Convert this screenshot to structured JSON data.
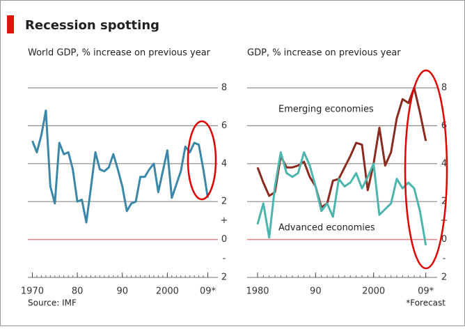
{
  "title": "Recession spotting",
  "source": "Source: IMF",
  "note": "*Forecast",
  "chart_data": [
    {
      "type": "line",
      "subtitle": "World GDP, % increase on previous year",
      "x": [
        1970,
        1971,
        1972,
        1973,
        1974,
        1975,
        1976,
        1977,
        1978,
        1979,
        1980,
        1981,
        1982,
        1983,
        1984,
        1985,
        1986,
        1987,
        1988,
        1989,
        1990,
        1991,
        1992,
        1993,
        1994,
        1995,
        1996,
        1997,
        1998,
        1999,
        2000,
        2001,
        2002,
        2003,
        2004,
        2005,
        2006,
        2007,
        2008,
        2009
      ],
      "values": [
        5.2,
        4.6,
        5.5,
        6.8,
        2.8,
        1.9,
        5.1,
        4.5,
        4.6,
        3.7,
        2.0,
        2.1,
        0.9,
        2.7,
        4.6,
        3.7,
        3.6,
        3.8,
        4.5,
        3.7,
        2.8,
        1.5,
        1.9,
        2.0,
        3.3,
        3.3,
        3.7,
        4.0,
        2.5,
        3.6,
        4.7,
        2.2,
        2.9,
        3.6,
        4.9,
        4.6,
        5.1,
        5.0,
        3.7,
        2.2
      ],
      "color": "#3a87a8",
      "xlim": [
        1969,
        2010
      ],
      "xticks": [
        1970,
        {
          "value": 1980,
          "label": "80"
        },
        {
          "value": 1990,
          "label": "90"
        },
        2000,
        {
          "value": 2009,
          "label": "09*"
        }
      ],
      "ylim": [
        -2,
        8
      ],
      "yticks": [
        8,
        6,
        4,
        2,
        0,
        {
          "value": -2,
          "label": "2"
        }
      ],
      "sign_labels": [
        {
          "value": 1,
          "label": "+"
        },
        {
          "value": -1,
          "label": "-"
        }
      ],
      "grid": true,
      "zero_line_color": "#e88080"
    },
    {
      "type": "line",
      "subtitle": "GDP, % increase on previous year",
      "x": [
        1980,
        1981,
        1982,
        1983,
        1984,
        1985,
        1986,
        1987,
        1988,
        1989,
        1990,
        1991,
        1992,
        1993,
        1994,
        1995,
        1996,
        1997,
        1998,
        1999,
        2000,
        2001,
        2002,
        2003,
        2004,
        2005,
        2006,
        2007,
        2008,
        2009
      ],
      "series": [
        {
          "name": "Emerging economies",
          "color": "#8b2a1e",
          "values": [
            3.8,
            3.0,
            2.3,
            2.5,
            4.4,
            3.8,
            3.8,
            3.9,
            4.1,
            3.3,
            2.8,
            1.7,
            1.9,
            3.1,
            3.2,
            3.8,
            4.4,
            5.1,
            5.0,
            2.6,
            4.0,
            5.9,
            3.9,
            4.6,
            6.4,
            7.4,
            7.2,
            8.0,
            6.7,
            5.2
          ]
        },
        {
          "name": "Advanced economies",
          "color": "#4cb5ad",
          "values": [
            0.8,
            1.9,
            0.1,
            2.8,
            4.6,
            3.5,
            3.3,
            3.5,
            4.6,
            3.9,
            2.8,
            1.5,
            1.9,
            1.2,
            3.2,
            2.8,
            3.0,
            3.5,
            2.7,
            3.3,
            4.0,
            1.3,
            1.6,
            1.9,
            3.2,
            2.7,
            3.0,
            2.7,
            1.5,
            -0.3
          ]
        }
      ],
      "xlim": [
        1978.2,
        2010
      ],
      "xticks": [
        1980,
        {
          "value": 1990,
          "label": "90"
        },
        2000,
        {
          "value": 2009,
          "label": "09*"
        }
      ],
      "ylim": [
        -2,
        8
      ],
      "yticks": [
        8,
        6,
        4,
        2,
        0,
        {
          "value": -2,
          "label": "2"
        }
      ],
      "sign_labels": [
        {
          "value": 1,
          "label": "+"
        },
        {
          "value": -1,
          "label": "-"
        }
      ],
      "grid": true,
      "zero_line_color": "#e88080"
    }
  ]
}
